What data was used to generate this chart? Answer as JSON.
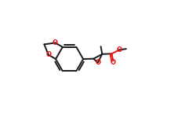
{
  "bg_color": "#ffffff",
  "bond_color": "#1a1a1a",
  "oxygen_color": "#ee1111",
  "lw": 1.4,
  "fs": 6.0,
  "figsize": [
    2.5,
    1.5
  ],
  "dpi": 100,
  "xlim": [
    0.0,
    1.0
  ],
  "ylim": [
    0.0,
    1.0
  ]
}
